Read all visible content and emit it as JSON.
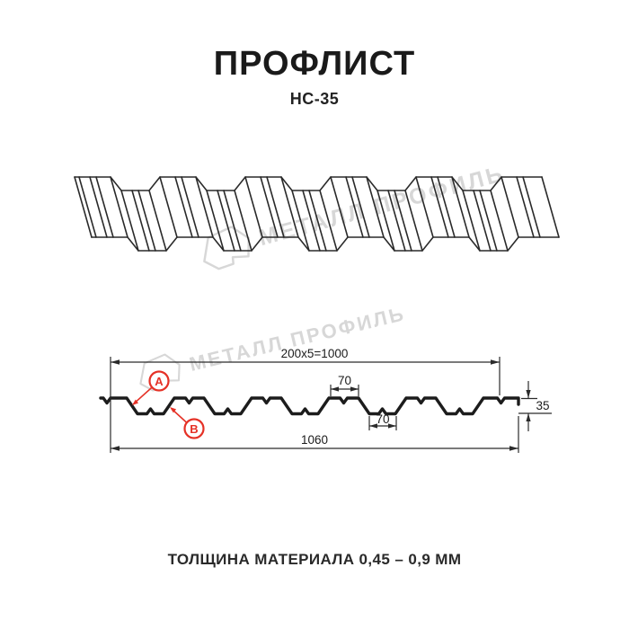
{
  "header": {
    "title": "ПРОФЛИСТ",
    "subtitle": "НС-35"
  },
  "footer": {
    "thickness_note": "ТОЛЩИНА МАТЕРИАЛА 0,45 – 0,9 ММ"
  },
  "watermark": {
    "brand": "МЕТАЛЛ ПРОФИЛЬ"
  },
  "section": {
    "dimensions": {
      "coverage_width": "200x5=1000",
      "rib_top_width": "70",
      "rib_bottom_width": "70",
      "overall_width": "1060",
      "profile_height": "35"
    },
    "markers": {
      "a": "A",
      "b": "B"
    }
  },
  "colors": {
    "profile_line": "#1c1c1c",
    "thin_line": "#2b2b2b",
    "marker_red": "#e53126",
    "watermark_gray": "#d7d7d7"
  }
}
